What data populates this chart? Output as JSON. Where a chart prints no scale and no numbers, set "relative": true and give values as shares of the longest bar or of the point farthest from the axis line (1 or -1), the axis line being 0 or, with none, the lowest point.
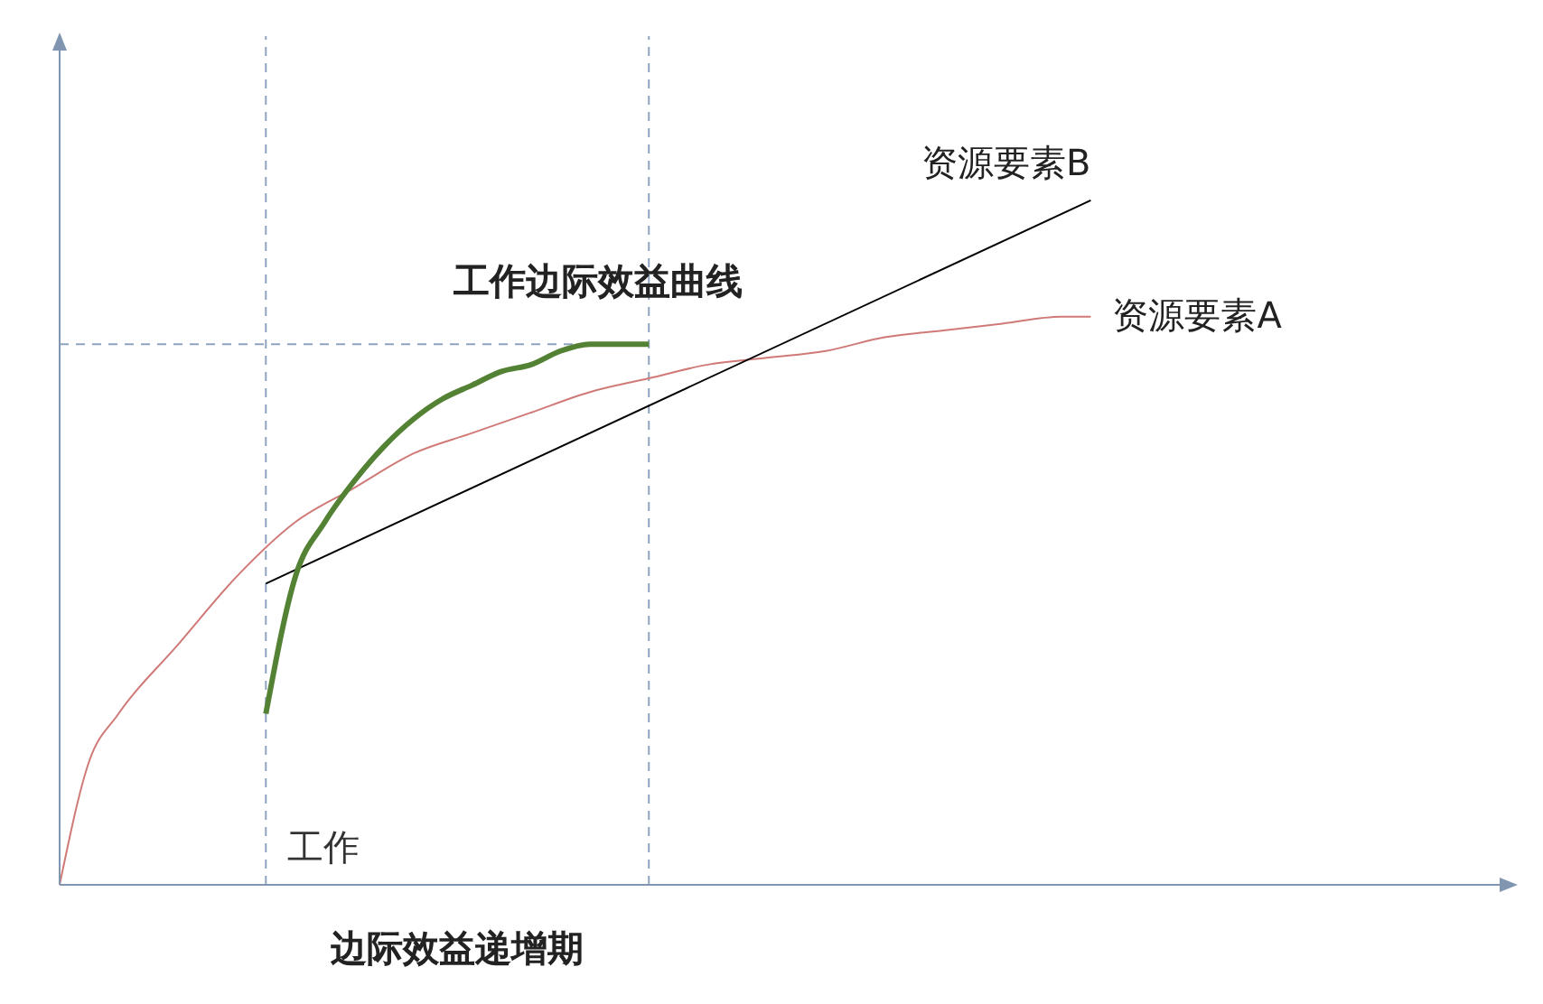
{
  "chart_data": {
    "type": "line",
    "relative": true,
    "xlabel": "边际效益递增期",
    "categories": [
      null,
      null,
      null,
      null,
      null,
      null,
      null,
      null,
      null,
      null,
      null,
      null,
      null,
      null,
      null,
      null,
      null,
      null,
      null,
      null,
      null,
      null,
      null,
      null,
      null,
      null,
      null,
      null,
      null,
      null,
      null,
      null,
      null,
      null,
      null,
      null,
      null,
      null,
      null,
      null,
      null,
      null,
      null,
      null,
      null,
      null,
      null,
      null,
      null,
      null
    ],
    "series": [
      {
        "name": "资源要素A",
        "color": "#d07a78",
        "values": [
          0,
          0.18,
          0.25,
          null,
          0.35,
          null,
          0.45,
          null,
          0.53,
          null,
          0.58,
          null,
          0.63,
          null,
          0.66,
          null,
          0.69,
          null,
          0.72,
          null,
          0.74,
          null,
          0.76,
          null,
          0.77,
          null,
          0.78,
          null,
          0.8,
          null,
          0.81,
          null,
          0.82,
          null,
          0.83,
          0.83,
          null,
          null,
          null,
          null,
          null,
          null,
          null,
          null,
          null,
          null,
          null,
          null,
          null,
          null
        ]
      },
      {
        "name": "资源要素B",
        "color": "#000000",
        "values": [
          null,
          null,
          null,
          null,
          null,
          null,
          null,
          0.44,
          null,
          null,
          null,
          null,
          null,
          null,
          null,
          null,
          null,
          null,
          null,
          null,
          null,
          null,
          null,
          null,
          null,
          null,
          null,
          null,
          null,
          null,
          null,
          null,
          null,
          null,
          null,
          1,
          null,
          null,
          null,
          null,
          null,
          null,
          null,
          null,
          null,
          null,
          null,
          null,
          null,
          null
        ]
      },
      {
        "name": "工作边际效益曲线",
        "color": "#548235",
        "values": [
          null,
          null,
          null,
          null,
          null,
          null,
          null,
          0.25,
          0.45,
          0.53,
          0.59,
          0.64,
          0.68,
          0.71,
          0.73,
          0.75,
          0.76,
          0.78,
          0.79,
          0.79,
          0.79,
          null,
          null,
          null,
          null,
          null,
          null,
          null,
          null,
          null,
          null,
          null,
          null,
          null,
          null,
          null,
          null,
          null,
          null,
          null,
          null,
          null,
          null,
          null,
          null,
          null,
          null,
          null,
          null,
          null
        ]
      }
    ],
    "annotations": [
      "工作"
    ],
    "ref_lines": [
      {
        "axis": "y",
        "value": 0.79,
        "color": "#8ea4c0",
        "line_style": "dashed"
      }
    ],
    "grid": false,
    "legend": false,
    "marker": "none",
    "line_style": "solid"
  }
}
